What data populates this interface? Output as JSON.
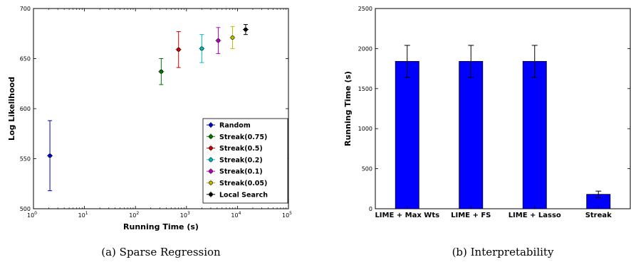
{
  "chart_data": [
    {
      "type": "scatter",
      "caption": "(a) Sparse Regression",
      "xlabel": "Running Time (s)",
      "ylabel": "Log Likelihood",
      "xscale": "log",
      "xlim": [
        1,
        100000
      ],
      "ylim": [
        500,
        700
      ],
      "x_ticks": [
        {
          "value": 1,
          "base": "10",
          "exp": "0"
        },
        {
          "value": 10,
          "base": "10",
          "exp": "1"
        },
        {
          "value": 100,
          "base": "10",
          "exp": "2"
        },
        {
          "value": 1000,
          "base": "10",
          "exp": "3"
        },
        {
          "value": 10000,
          "base": "10",
          "exp": "4"
        },
        {
          "value": 100000,
          "base": "10",
          "exp": "5"
        }
      ],
      "y_ticks": [
        500,
        550,
        600,
        650,
        700
      ],
      "legend_position": "bottom-right",
      "series": [
        {
          "name": "Random",
          "color": "#0000cc",
          "x": 2.1,
          "y": 553,
          "yerr": 35
        },
        {
          "name": "Streak(0.75)",
          "color": "#007700",
          "x": 320,
          "y": 637,
          "yerr": 13
        },
        {
          "name": "Streak(0.5)",
          "color": "#cc0000",
          "x": 700,
          "y": 659,
          "yerr": 18
        },
        {
          "name": "Streak(0.2)",
          "color": "#00bbbb",
          "x": 2000,
          "y": 660,
          "yerr": 14
        },
        {
          "name": "Streak(0.1)",
          "color": "#bb00bb",
          "x": 4200,
          "y": 668,
          "yerr": 13
        },
        {
          "name": "Streak(0.05)",
          "color": "#bbbb00",
          "x": 8000,
          "y": 671,
          "yerr": 11
        },
        {
          "name": "Local Search",
          "color": "#000000",
          "x": 14500,
          "y": 679,
          "yerr": 5
        }
      ]
    },
    {
      "type": "bar",
      "caption": "(b) Interpretability",
      "xlabel": "",
      "ylabel": "Running Time (s)",
      "ylim": [
        0,
        2500
      ],
      "y_ticks": [
        0,
        500,
        1000,
        1500,
        2000,
        2500
      ],
      "bar_color": "#0000ff",
      "categories": [
        "LIME + Max Wts",
        "LIME + FS",
        "LIME + Lasso",
        "Streak"
      ],
      "values": [
        1840,
        1840,
        1840,
        180
      ],
      "errors": [
        200,
        200,
        200,
        40
      ]
    }
  ]
}
